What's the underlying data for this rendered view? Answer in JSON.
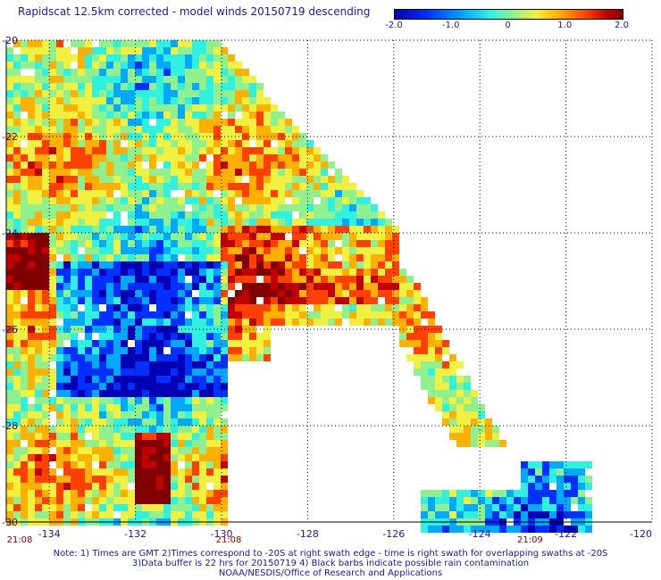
{
  "title": "Rapidscat 12.5km corrected - model winds 20150719 descending",
  "colorbar": {
    "ticks": [
      {
        "label": "-2.0",
        "value": -2.0
      },
      {
        "label": "-1.0",
        "value": -1.0
      },
      {
        "label": "0",
        "value": 0
      },
      {
        "label": "1.0",
        "value": 1.0
      },
      {
        "label": "2.0",
        "value": 2.0
      }
    ],
    "range": [
      -2.0,
      2.0
    ]
  },
  "map": {
    "lon_range": [
      -135,
      -120
    ],
    "lat_range": [
      -30,
      -20
    ],
    "lon_ticks": [
      "-134",
      "-132",
      "-130",
      "-128",
      "-126",
      "-124",
      "-122",
      "-120"
    ],
    "lat_ticks": [
      "-20",
      "-22",
      "-24",
      "-26",
      "-28",
      "-30"
    ],
    "time_labels": [
      {
        "label": "21:08",
        "lon": -135
      },
      {
        "label": "21:08",
        "lon": -130
      },
      {
        "label": "21:09",
        "lon": -123
      }
    ]
  },
  "notes": [
    "Note: 1) Times are GMT 2)Times correspond to -20S at right swath edge - time is right swath for overlapping swaths at -20S",
    "3)Data buffer is 22 hrs for 20150719 4) Black barbs indicate possible rain contamination",
    "NOAA/NESDIS/Office of Research and Applications"
  ],
  "colors": {
    "palette": [
      "#0000b4",
      "#0030ff",
      "#00a8ff",
      "#30f0e0",
      "#90f090",
      "#f0f040",
      "#ffb000",
      "#ff4000",
      "#c00000",
      "#800000"
    ],
    "text": "#1a1a8c",
    "time": "#8b0000"
  }
}
